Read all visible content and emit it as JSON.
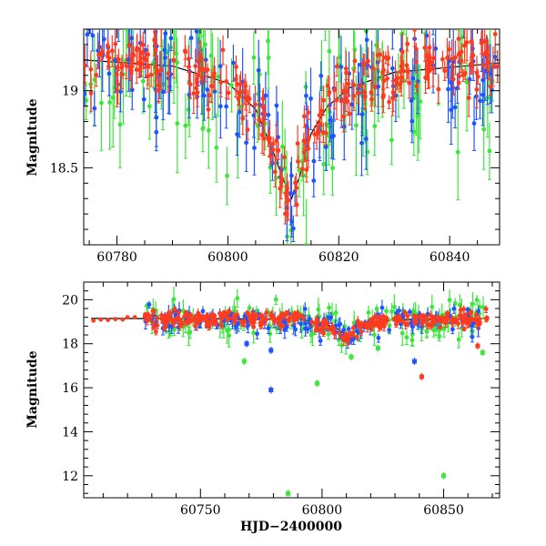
{
  "chart_data": [
    {
      "type": "scatter",
      "title": "",
      "xlabel": "",
      "ylabel": "Magnitude",
      "xlim": [
        60774,
        60849
      ],
      "ylim": [
        19.4,
        18.0
      ],
      "y_inverted": true,
      "grid": false,
      "legend": "none",
      "x_ticks": [
        60780,
        60800,
        60820,
        60840
      ],
      "y_ticks": [
        18.5,
        19
      ],
      "y_tick_labels": [
        "18.5",
        "19"
      ],
      "model_curve": {
        "color": "#000000",
        "points": [
          [
            60774,
            19.2
          ],
          [
            60790,
            19.16
          ],
          [
            60800,
            19.05
          ],
          [
            60805,
            18.88
          ],
          [
            60808,
            18.62
          ],
          [
            60810,
            18.42
          ],
          [
            60811.5,
            18.3
          ],
          [
            60813,
            18.45
          ],
          [
            60815,
            18.72
          ],
          [
            60818,
            18.9
          ],
          [
            60822,
            19.02
          ],
          [
            60830,
            19.12
          ],
          [
            60849,
            19.18
          ]
        ]
      },
      "series": [
        {
          "name": "",
          "color": "#ff3b1f",
          "band": "r",
          "scatter": 0.1,
          "count": 260
        },
        {
          "name": "",
          "color": "#1f55ff",
          "band": "g",
          "scatter": 0.18,
          "count": 150
        },
        {
          "name": "",
          "color": "#3ce63c",
          "band": "c",
          "scatter": 0.25,
          "count": 130
        }
      ]
    },
    {
      "type": "scatter",
      "title": "",
      "xlabel": "HJD−2400000",
      "ylabel": "Magnitude",
      "xlim": [
        60702,
        60873
      ],
      "ylim": [
        20.8,
        11.0
      ],
      "y_inverted": true,
      "grid": false,
      "legend": "none",
      "x_ticks": [
        60750,
        60800,
        60850
      ],
      "y_ticks": [
        12,
        14,
        16,
        18,
        20
      ],
      "y_tick_labels": [
        "12",
        "14",
        "16",
        "18",
        "20"
      ],
      "model_curve": {
        "color": "#000000",
        "points": [
          [
            60705,
            19.15
          ],
          [
            60790,
            19.12
          ],
          [
            60800,
            18.95
          ],
          [
            60806,
            18.7
          ],
          [
            60811,
            18.3
          ],
          [
            60815,
            18.65
          ],
          [
            60820,
            18.95
          ],
          [
            60830,
            19.1
          ],
          [
            60868,
            19.15
          ]
        ]
      },
      "outliers": [
        {
          "x": 60786,
          "y": 11.2,
          "color": "#3ce63c"
        },
        {
          "x": 60850,
          "y": 12.0,
          "color": "#3ce63c"
        },
        {
          "x": 60779,
          "y": 15.9,
          "color": "#1f55ff"
        },
        {
          "x": 60798,
          "y": 16.2,
          "color": "#3ce63c"
        },
        {
          "x": 60841,
          "y": 16.5,
          "color": "#ff3b1f"
        },
        {
          "x": 60768,
          "y": 17.2,
          "color": "#3ce63c"
        },
        {
          "x": 60838,
          "y": 17.2,
          "color": "#1f55ff"
        },
        {
          "x": 60812,
          "y": 17.4,
          "color": "#3ce63c"
        },
        {
          "x": 60779,
          "y": 17.7,
          "color": "#1f55ff"
        },
        {
          "x": 60769,
          "y": 18.0,
          "color": "#1f55ff"
        },
        {
          "x": 60866,
          "y": 17.6,
          "color": "#3ce63c"
        },
        {
          "x": 60823,
          "y": 17.8,
          "color": "#3ce63c"
        },
        {
          "x": 60864,
          "y": 17.9,
          "color": "#ff3b1f"
        }
      ],
      "early_points": {
        "color": "#ff3b1f",
        "x": [
          60706,
          60709,
          60712,
          60715,
          60718,
          60720,
          60723
        ],
        "y": [
          19.05,
          19.1,
          19.08,
          19.12,
          19.1,
          19.2,
          19.2
        ]
      },
      "series": [
        {
          "name": "",
          "color": "#ff3b1f",
          "band": "r",
          "scatter": 0.18,
          "count": 300
        },
        {
          "name": "",
          "color": "#1f55ff",
          "band": "g",
          "scatter": 0.3,
          "count": 160
        },
        {
          "name": "",
          "color": "#3ce63c",
          "band": "c",
          "scatter": 0.45,
          "count": 150
        }
      ]
    }
  ]
}
